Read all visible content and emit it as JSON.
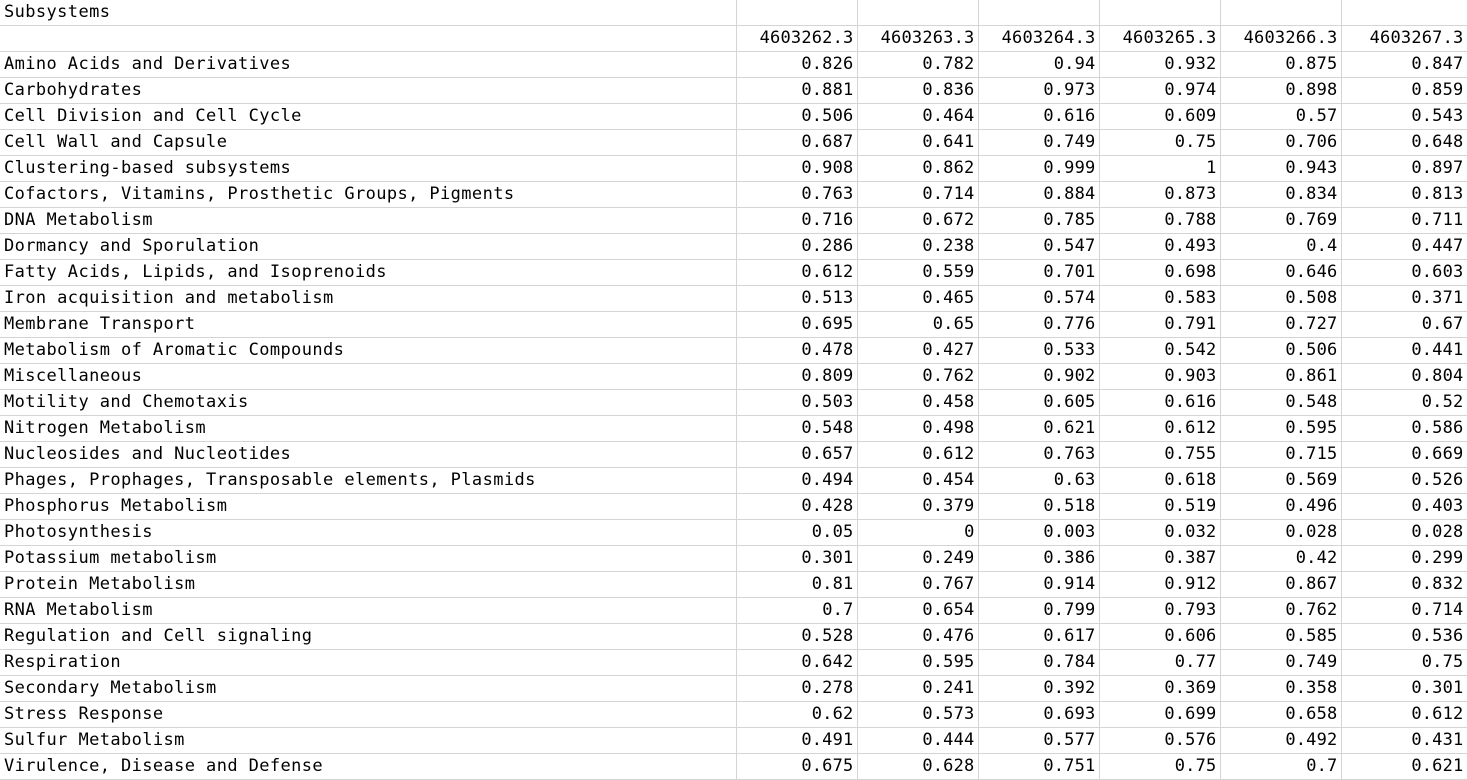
{
  "sheet": {
    "title": "Subsystems",
    "columns": [
      "4603262.3",
      "4603263.3",
      "4603264.3",
      "4603265.3",
      "4603266.3",
      "4603267.3"
    ],
    "rows": [
      {
        "name": "Amino Acids and Derivatives",
        "values": [
          "0.826",
          "0.782",
          "0.94",
          "0.932",
          "0.875",
          "0.847"
        ]
      },
      {
        "name": "Carbohydrates",
        "values": [
          "0.881",
          "0.836",
          "0.973",
          "0.974",
          "0.898",
          "0.859"
        ]
      },
      {
        "name": "Cell Division and Cell Cycle",
        "values": [
          "0.506",
          "0.464",
          "0.616",
          "0.609",
          "0.57",
          "0.543"
        ]
      },
      {
        "name": "Cell Wall and Capsule",
        "values": [
          "0.687",
          "0.641",
          "0.749",
          "0.75",
          "0.706",
          "0.648"
        ]
      },
      {
        "name": "Clustering-based subsystems",
        "values": [
          "0.908",
          "0.862",
          "0.999",
          "1",
          "0.943",
          "0.897"
        ]
      },
      {
        "name": "Cofactors, Vitamins, Prosthetic Groups, Pigments",
        "values": [
          "0.763",
          "0.714",
          "0.884",
          "0.873",
          "0.834",
          "0.813"
        ]
      },
      {
        "name": "DNA Metabolism",
        "values": [
          "0.716",
          "0.672",
          "0.785",
          "0.788",
          "0.769",
          "0.711"
        ]
      },
      {
        "name": "Dormancy and Sporulation",
        "values": [
          "0.286",
          "0.238",
          "0.547",
          "0.493",
          "0.4",
          "0.447"
        ]
      },
      {
        "name": "Fatty Acids, Lipids, and Isoprenoids",
        "values": [
          "0.612",
          "0.559",
          "0.701",
          "0.698",
          "0.646",
          "0.603"
        ]
      },
      {
        "name": "Iron acquisition and metabolism",
        "values": [
          "0.513",
          "0.465",
          "0.574",
          "0.583",
          "0.508",
          "0.371"
        ]
      },
      {
        "name": "Membrane Transport",
        "values": [
          "0.695",
          "0.65",
          "0.776",
          "0.791",
          "0.727",
          "0.67"
        ]
      },
      {
        "name": "Metabolism of Aromatic Compounds",
        "values": [
          "0.478",
          "0.427",
          "0.533",
          "0.542",
          "0.506",
          "0.441"
        ]
      },
      {
        "name": "Miscellaneous",
        "values": [
          "0.809",
          "0.762",
          "0.902",
          "0.903",
          "0.861",
          "0.804"
        ]
      },
      {
        "name": "Motility and Chemotaxis",
        "values": [
          "0.503",
          "0.458",
          "0.605",
          "0.616",
          "0.548",
          "0.52"
        ]
      },
      {
        "name": "Nitrogen Metabolism",
        "values": [
          "0.548",
          "0.498",
          "0.621",
          "0.612",
          "0.595",
          "0.586"
        ]
      },
      {
        "name": "Nucleosides and Nucleotides",
        "values": [
          "0.657",
          "0.612",
          "0.763",
          "0.755",
          "0.715",
          "0.669"
        ]
      },
      {
        "name": "Phages, Prophages, Transposable elements, Plasmids",
        "values": [
          "0.494",
          "0.454",
          "0.63",
          "0.618",
          "0.569",
          "0.526"
        ]
      },
      {
        "name": "Phosphorus Metabolism",
        "values": [
          "0.428",
          "0.379",
          "0.518",
          "0.519",
          "0.496",
          "0.403"
        ]
      },
      {
        "name": "Photosynthesis",
        "values": [
          "0.05",
          "0",
          "0.003",
          "0.032",
          "0.028",
          "0.028"
        ]
      },
      {
        "name": "Potassium metabolism",
        "values": [
          "0.301",
          "0.249",
          "0.386",
          "0.387",
          "0.42",
          "0.299"
        ]
      },
      {
        "name": "Protein Metabolism",
        "values": [
          "0.81",
          "0.767",
          "0.914",
          "0.912",
          "0.867",
          "0.832"
        ]
      },
      {
        "name": "RNA Metabolism",
        "values": [
          "0.7",
          "0.654",
          "0.799",
          "0.793",
          "0.762",
          "0.714"
        ]
      },
      {
        "name": "Regulation and Cell signaling",
        "values": [
          "0.528",
          "0.476",
          "0.617",
          "0.606",
          "0.585",
          "0.536"
        ]
      },
      {
        "name": "Respiration",
        "values": [
          "0.642",
          "0.595",
          "0.784",
          "0.77",
          "0.749",
          "0.75"
        ]
      },
      {
        "name": "Secondary Metabolism",
        "values": [
          "0.278",
          "0.241",
          "0.392",
          "0.369",
          "0.358",
          "0.301"
        ]
      },
      {
        "name": "Stress Response",
        "values": [
          "0.62",
          "0.573",
          "0.693",
          "0.699",
          "0.658",
          "0.612"
        ]
      },
      {
        "name": "Sulfur Metabolism",
        "values": [
          "0.491",
          "0.444",
          "0.577",
          "0.576",
          "0.492",
          "0.431"
        ]
      },
      {
        "name": "Virulence, Disease and Defense",
        "values": [
          "0.675",
          "0.628",
          "0.751",
          "0.75",
          "0.7",
          "0.621"
        ]
      }
    ]
  }
}
